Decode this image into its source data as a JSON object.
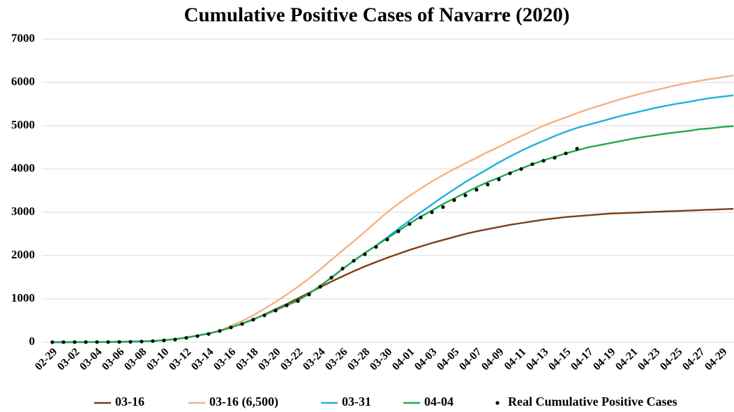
{
  "chart_data": {
    "type": "line",
    "title": "Cumulative Positive Cases of Navarre (2020)",
    "categories": [
      "02-29",
      null,
      "03-02",
      null,
      "03-04",
      null,
      "03-06",
      null,
      "03-08",
      null,
      "03-10",
      null,
      "03-12",
      null,
      "03-14",
      null,
      "03-16",
      null,
      "03-18",
      null,
      "03-20",
      null,
      "03-22",
      null,
      "03-24",
      null,
      "03-26",
      null,
      "03-28",
      null,
      "03-30",
      null,
      "04-01",
      null,
      "04-03",
      null,
      "04-05",
      null,
      "04-07",
      null,
      "04-09",
      null,
      "04-11",
      null,
      "04-13",
      null,
      "04-15",
      null,
      "04-17",
      null,
      "04-19",
      null,
      "04-21",
      null,
      "04-23",
      null,
      "04-25",
      null,
      "04-27",
      null,
      "04-29",
      null
    ],
    "ylim": [
      0,
      7000
    ],
    "yticks": [
      0,
      1000,
      2000,
      3000,
      4000,
      5000,
      6000,
      7000
    ],
    "grid": true,
    "series": [
      {
        "name": "03-16",
        "color": "#7b3f16",
        "mode": "line",
        "values": [
          0,
          0,
          1,
          2,
          3,
          5,
          8,
          12,
          18,
          28,
          45,
          70,
          105,
          150,
          200,
          260,
          340,
          430,
          520,
          640,
          760,
          880,
          1010,
          1140,
          1270,
          1400,
          1520,
          1640,
          1750,
          1850,
          1950,
          2040,
          2130,
          2210,
          2290,
          2360,
          2430,
          2500,
          2560,
          2610,
          2660,
          2710,
          2750,
          2790,
          2830,
          2860,
          2890,
          2910,
          2930,
          2950,
          2970,
          2980,
          2990,
          3000,
          3010,
          3020,
          3030,
          3040,
          3050,
          3060,
          3070,
          3080
        ]
      },
      {
        "name": "03-16 (6,500)",
        "color": "#f4b183",
        "mode": "line",
        "values": [
          0,
          0,
          1,
          2,
          3,
          5,
          8,
          12,
          18,
          28,
          45,
          70,
          105,
          150,
          200,
          260,
          380,
          490,
          620,
          770,
          930,
          1100,
          1280,
          1470,
          1680,
          1900,
          2120,
          2330,
          2550,
          2780,
          3000,
          3200,
          3380,
          3550,
          3710,
          3860,
          4000,
          4130,
          4260,
          4390,
          4510,
          4640,
          4760,
          4880,
          5000,
          5100,
          5190,
          5290,
          5380,
          5460,
          5540,
          5620,
          5690,
          5760,
          5820,
          5880,
          5940,
          5990,
          6040,
          6080,
          6120,
          6160
        ]
      },
      {
        "name": "03-31",
        "color": "#1fb0e0",
        "mode": "line",
        "values": [
          0,
          0,
          1,
          2,
          3,
          5,
          8,
          12,
          18,
          28,
          45,
          70,
          105,
          150,
          200,
          260,
          340,
          430,
          530,
          630,
          740,
          850,
          960,
          1120,
          1300,
          1490,
          1690,
          1880,
          2060,
          2230,
          2420,
          2620,
          2810,
          3000,
          3180,
          3360,
          3530,
          3700,
          3850,
          4000,
          4150,
          4290,
          4420,
          4540,
          4650,
          4760,
          4860,
          4950,
          5020,
          5090,
          5160,
          5230,
          5290,
          5350,
          5410,
          5460,
          5510,
          5550,
          5600,
          5640,
          5670,
          5700
        ]
      },
      {
        "name": "04-04",
        "color": "#22a84f",
        "mode": "line",
        "values": [
          0,
          0,
          1,
          2,
          3,
          5,
          8,
          12,
          18,
          28,
          45,
          70,
          105,
          150,
          200,
          260,
          340,
          430,
          530,
          630,
          740,
          850,
          960,
          1120,
          1300,
          1490,
          1690,
          1880,
          2060,
          2230,
          2400,
          2570,
          2740,
          2900,
          3040,
          3190,
          3320,
          3450,
          3580,
          3700,
          3800,
          3910,
          4010,
          4110,
          4200,
          4280,
          4360,
          4430,
          4500,
          4550,
          4600,
          4650,
          4700,
          4740,
          4780,
          4820,
          4850,
          4880,
          4920,
          4940,
          4970,
          4990
        ]
      },
      {
        "name": "Real Cumulative Positive Cases",
        "color": "#000000",
        "mode": "markers",
        "values": [
          0,
          1,
          2,
          2,
          3,
          3,
          5,
          8,
          15,
          25,
          40,
          60,
          100,
          140,
          190,
          260,
          340,
          420,
          520,
          620,
          730,
          850,
          950,
          1100,
          1280,
          1490,
          1700,
          1880,
          2030,
          2200,
          2370,
          2560,
          2730,
          2880,
          3000,
          3120,
          3280,
          3390,
          3520,
          3640,
          3760,
          3900,
          4000,
          4110,
          4190,
          4260,
          4360,
          4470,
          null,
          null,
          null,
          null,
          null,
          null,
          null,
          null,
          null,
          null,
          null,
          null,
          null,
          null
        ]
      }
    ]
  }
}
